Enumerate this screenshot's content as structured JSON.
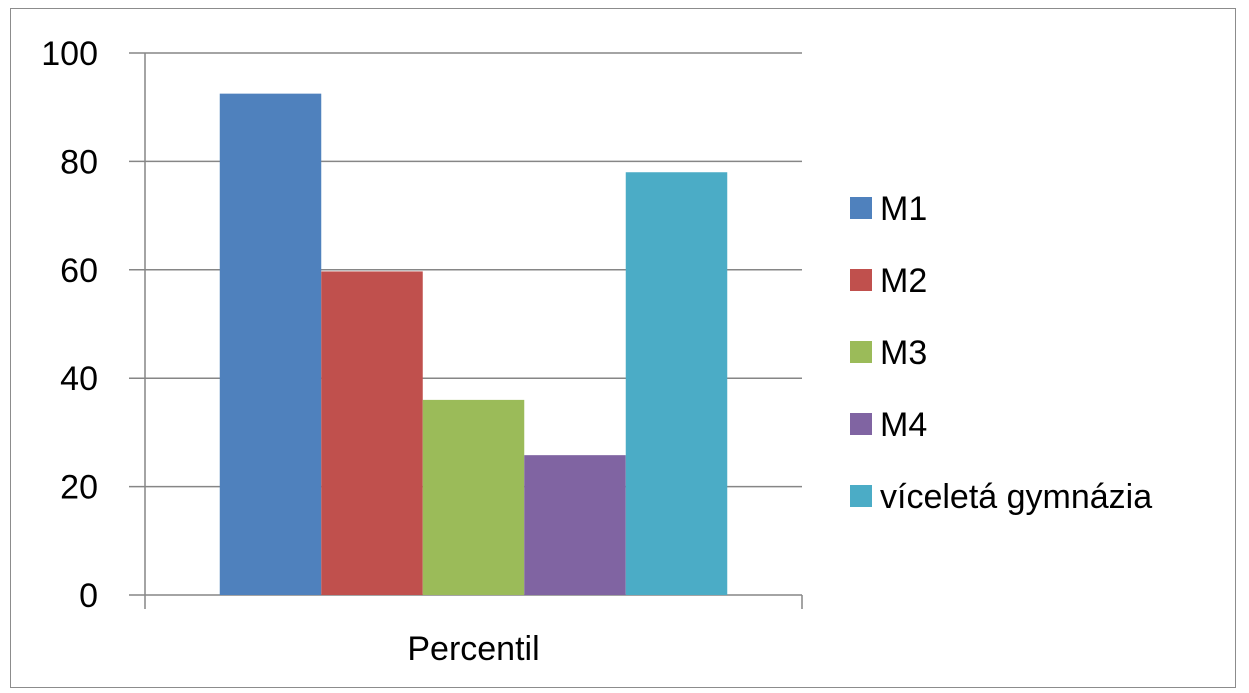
{
  "chart_data": {
    "type": "bar",
    "categories": [
      "Percentil"
    ],
    "series": [
      {
        "name": "M1",
        "values": [
          92.5
        ],
        "color": "#4F81BD"
      },
      {
        "name": "M2",
        "values": [
          59.7
        ],
        "color": "#C0504D"
      },
      {
        "name": "M3",
        "values": [
          36.0
        ],
        "color": "#9BBB59"
      },
      {
        "name": "M4",
        "values": [
          25.8
        ],
        "color": "#8064A2"
      },
      {
        "name": "víceletá gymnázia",
        "values": [
          78.0
        ],
        "color": "#4BACC6"
      }
    ],
    "ylim": [
      0,
      100
    ],
    "yticks": [
      "0",
      "20",
      "40",
      "60",
      "80",
      "100"
    ],
    "grid": true,
    "legend_position": "right"
  }
}
